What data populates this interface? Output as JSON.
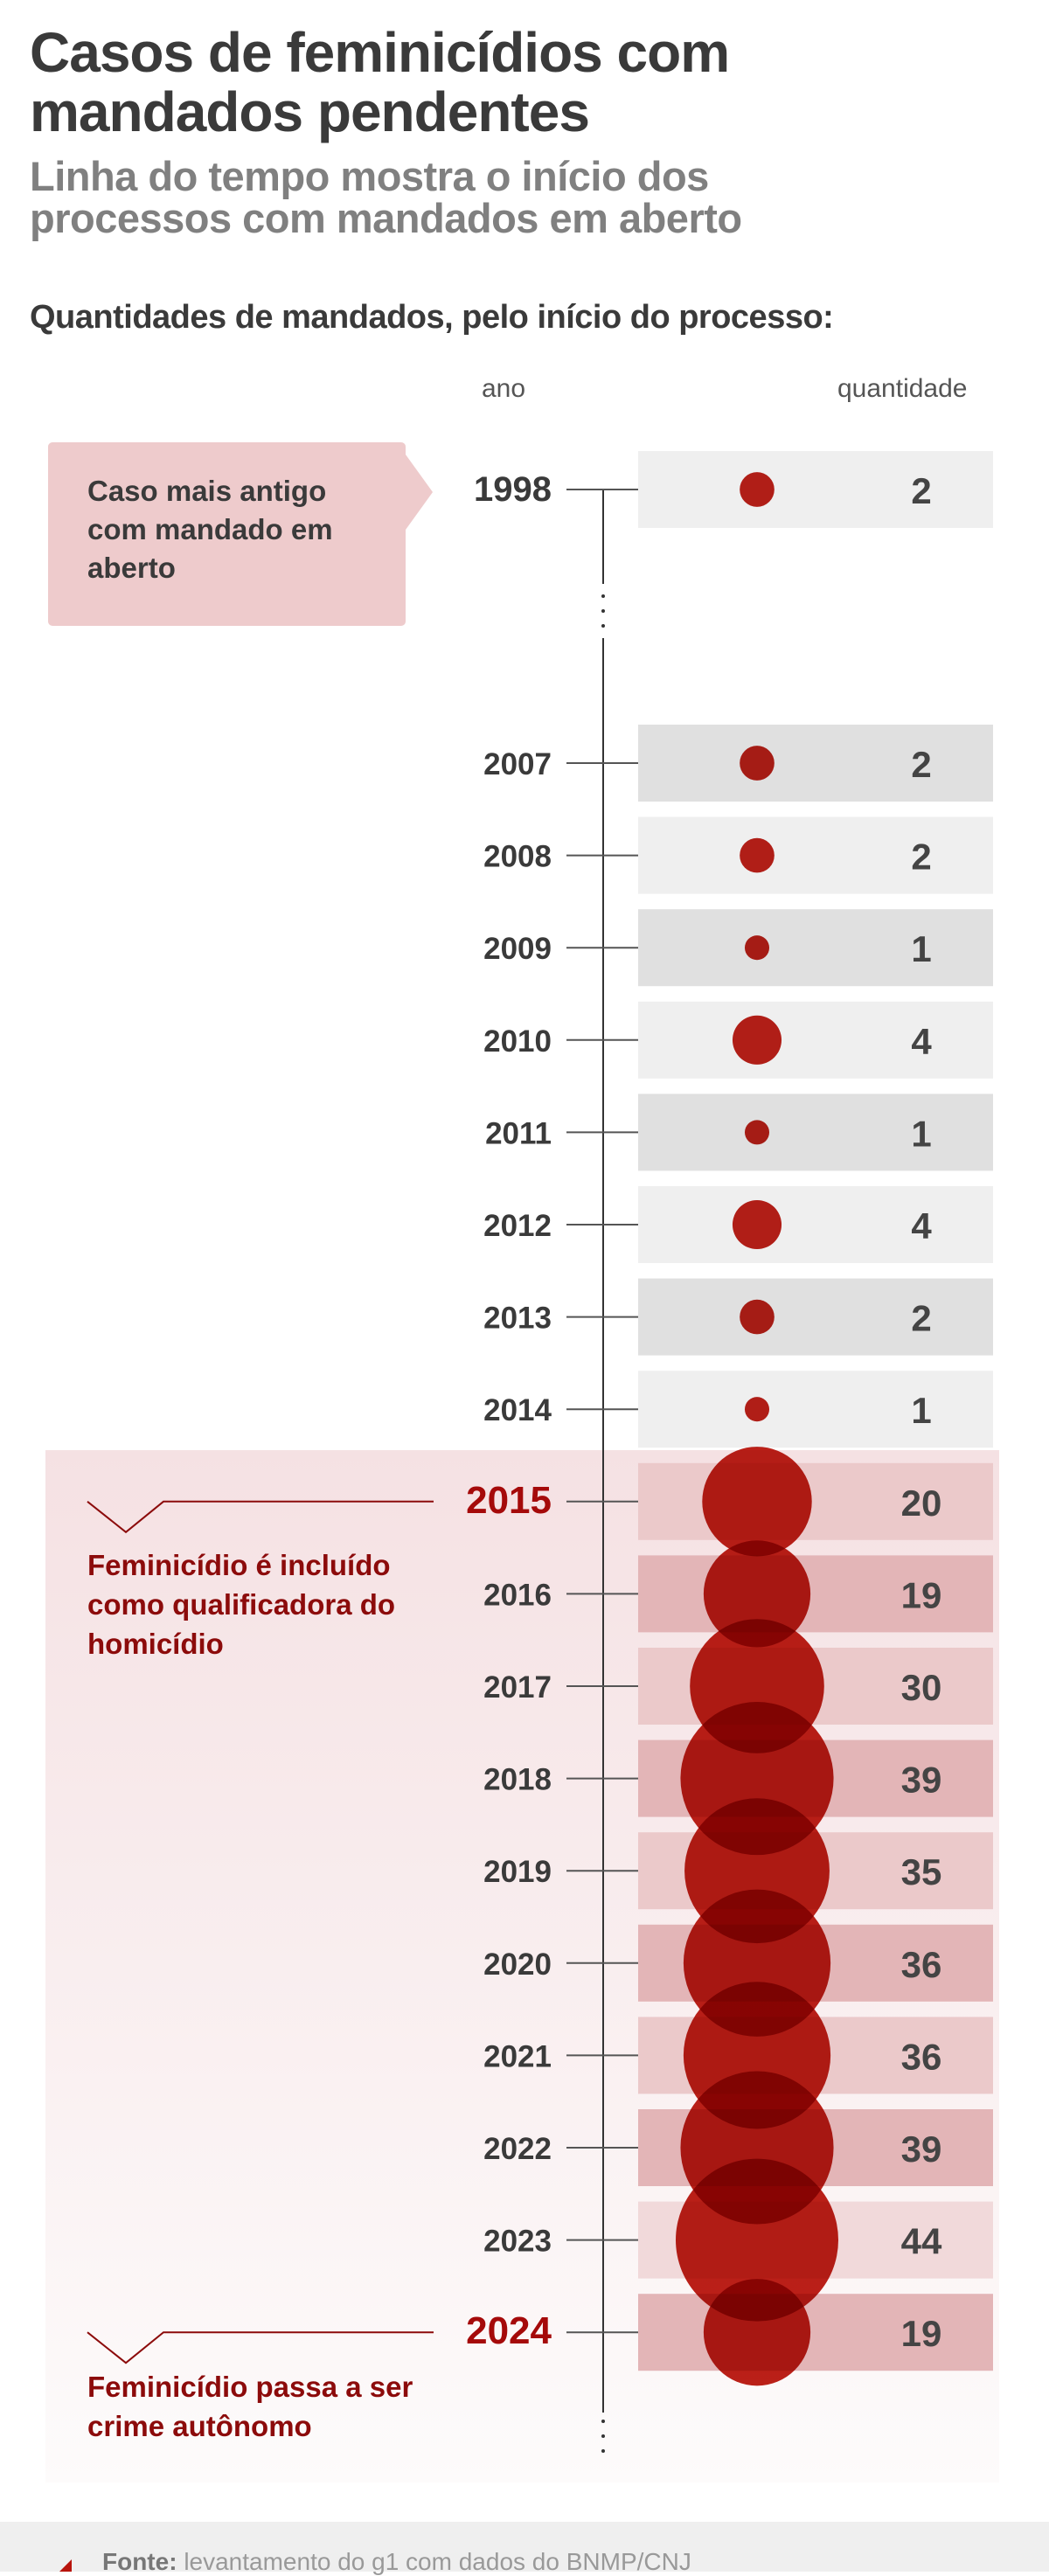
{
  "title": "Casos de feminicídios com mandados pendentes",
  "subtitle": "Linha do tempo mostra o início dos processos com mandados em aberto",
  "lead": "Quantidades de mandados, pelo início do processo:",
  "columns": {
    "year": "ano",
    "count": "quantidade"
  },
  "callout_oldest": "Caso mais antigo com mandado em aberto",
  "annotations": [
    {
      "year": "2015",
      "text": "Feminicídio é incluído como qualificadora do homicídio"
    },
    {
      "year": "2024",
      "text": "Feminicídio passa a ser crime autônomo"
    }
  ],
  "source_label": "Fonte:",
  "source_text": "levantamento do g1 com dados do BNMP/CNJ",
  "colors": {
    "circle": "#b8140c",
    "highlight_year": "#a50a0a",
    "text": "#3a3a3a"
  },
  "chart_data": {
    "type": "bubble-timeline",
    "categories": [
      "1998",
      "2007",
      "2008",
      "2009",
      "2010",
      "2011",
      "2012",
      "2013",
      "2014",
      "2015",
      "2016",
      "2017",
      "2018",
      "2019",
      "2020",
      "2021",
      "2022",
      "2023",
      "2024"
    ],
    "values": [
      2,
      2,
      2,
      1,
      4,
      1,
      4,
      2,
      1,
      20,
      19,
      30,
      39,
      35,
      36,
      36,
      39,
      44,
      19
    ],
    "highlight_from": "2015"
  }
}
